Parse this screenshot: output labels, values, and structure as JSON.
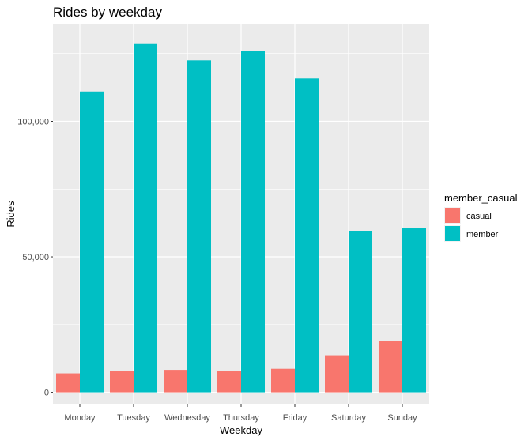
{
  "chart_data": {
    "type": "bar",
    "title": "Rides by weekday",
    "xlabel": "Weekday",
    "ylabel": "Rides",
    "categories": [
      "Monday",
      "Tuesday",
      "Wednesday",
      "Thursday",
      "Friday",
      "Saturday",
      "Sunday"
    ],
    "series": [
      {
        "name": "casual",
        "color": "#F8766D",
        "values": [
          7000,
          8000,
          8300,
          7800,
          8700,
          13700,
          18900
        ]
      },
      {
        "name": "member",
        "color": "#00BFC4",
        "values": [
          111000,
          128500,
          122500,
          126000,
          115800,
          59500,
          60500
        ]
      }
    ],
    "ylim": [
      -4500,
      136000
    ],
    "yticks": [
      0,
      50000,
      100000
    ],
    "ytick_labels": [
      "0",
      "50,000",
      "100,000"
    ],
    "legend": {
      "title": "member_casual",
      "position": "right"
    },
    "grid": true,
    "panel_background": "#EBEBEB"
  }
}
